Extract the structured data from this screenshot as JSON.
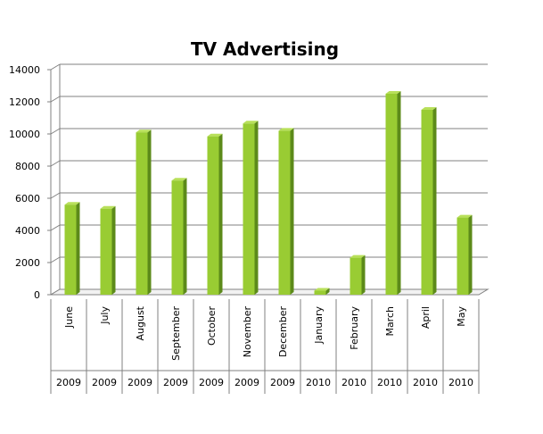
{
  "chart_data": {
    "type": "bar",
    "title": "TV Advertising",
    "categories": [
      "June",
      "July",
      "August",
      "September",
      "October",
      "November",
      "December",
      "January",
      "February",
      "March",
      "April",
      "May"
    ],
    "years": [
      "2009",
      "2009",
      "2009",
      "2009",
      "2009",
      "2009",
      "2009",
      "2010",
      "2010",
      "2010",
      "2010",
      "2010"
    ],
    "values": [
      5600,
      5350,
      10100,
      7100,
      9850,
      10650,
      10200,
      250,
      2300,
      12500,
      11500,
      4800
    ],
    "ylim": [
      0,
      14000
    ],
    "yticks": [
      0,
      2000,
      4000,
      6000,
      8000,
      10000,
      12000,
      14000
    ],
    "xlabel": "",
    "ylabel": "",
    "grid": true,
    "legend": "none",
    "colors": {
      "bar_front": "#99cc33",
      "bar_side": "#5c8a1a",
      "bar_top": "#b8e05a",
      "grid": "#808080"
    }
  }
}
